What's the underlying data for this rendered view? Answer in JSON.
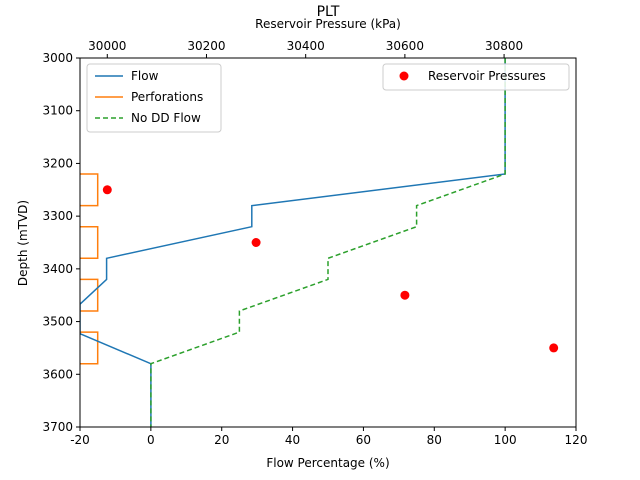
{
  "chart_data": {
    "type": "line",
    "title": "PLT",
    "xlabel": "Flow Percentage (%)",
    "ylabel": "Depth (mTVD)",
    "x2label": "Reservoir Pressure (kPa)",
    "xlim": [
      -20,
      120
    ],
    "ylim": [
      3700,
      3000
    ],
    "x2lim": [
      29945,
      30945
    ],
    "x_ticks": [
      -20,
      0,
      20,
      40,
      60,
      80,
      100,
      120
    ],
    "y_ticks": [
      3000,
      3100,
      3200,
      3300,
      3400,
      3500,
      3600,
      3700
    ],
    "x2_ticks": [
      30000,
      30200,
      30400,
      30600,
      30800
    ],
    "grid": false,
    "legend_left": [
      "Flow",
      "Perforations",
      "No DD Flow"
    ],
    "legend_right": [
      "Reservoir Pressures"
    ],
    "series": [
      {
        "name": "Flow",
        "color": "#1f77b4",
        "style": "solid",
        "x": [
          100,
          100,
          28.5,
          28.5,
          -12.5,
          -12.5,
          -20,
          -20,
          0,
          0
        ],
        "y": [
          3000,
          3220,
          3280,
          3320,
          3380,
          3420,
          3467,
          3523,
          3580,
          3700
        ]
      },
      {
        "name": "No DD Flow",
        "color": "#2ca02c",
        "style": "dashed",
        "x": [
          100,
          100,
          75,
          75,
          50,
          50,
          25,
          25,
          0,
          0
        ],
        "y": [
          3000,
          3220,
          3280,
          3320,
          3380,
          3420,
          3480,
          3520,
          3580,
          3700
        ]
      }
    ],
    "perforations": {
      "name": "Perforations",
      "color": "#ff7f0e",
      "x_edge": -15,
      "intervals": [
        [
          3220,
          3280
        ],
        [
          3320,
          3380
        ],
        [
          3420,
          3480
        ],
        [
          3520,
          3580
        ]
      ]
    },
    "reservoir_pressures": {
      "name": "Reservoir Pressures",
      "color": "#ff0000",
      "points": [
        {
          "pressure": 30000,
          "depth": 3250
        },
        {
          "pressure": 30300,
          "depth": 3350
        },
        {
          "pressure": 30600,
          "depth": 3450
        },
        {
          "pressure": 30900,
          "depth": 3550
        }
      ]
    }
  }
}
